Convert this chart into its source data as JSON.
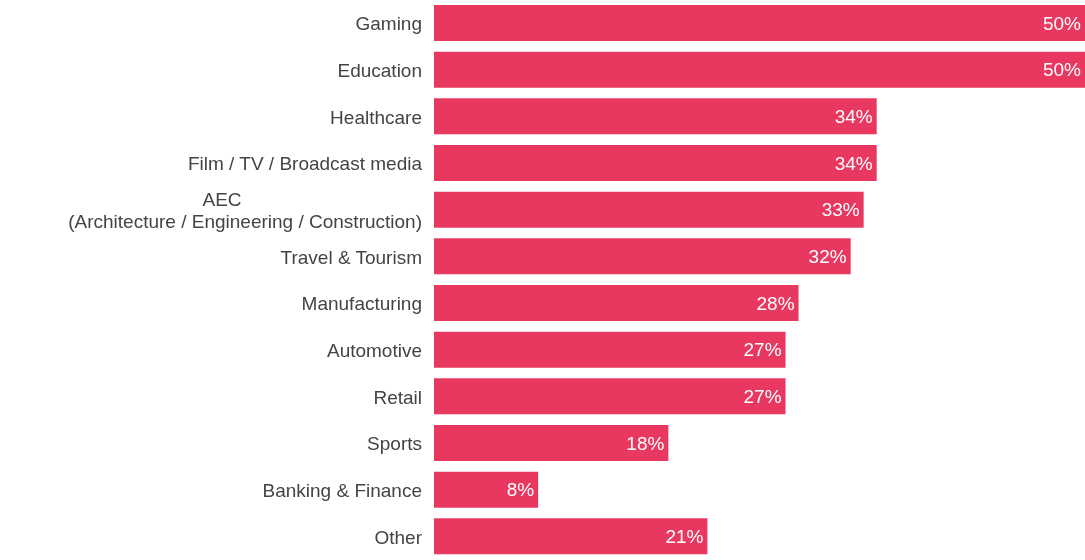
{
  "chart_data": {
    "type": "bar",
    "orientation": "horizontal",
    "categories": [
      "Gaming",
      "Education",
      "Healthcare",
      "Film / TV / Broadcast media",
      "AEC\n(Architecture / Engineering / Construction)",
      "Travel & Tourism",
      "Manufacturing",
      "Automotive",
      "Retail",
      "Sports",
      "Banking & Finance",
      "Other"
    ],
    "values": [
      50,
      50,
      34,
      34,
      33,
      32,
      28,
      27,
      27,
      18,
      8,
      21
    ],
    "value_labels": [
      "50%",
      "50%",
      "34%",
      "34%",
      "33%",
      "32%",
      "28%",
      "27%",
      "27%",
      "18%",
      "8%",
      "21%"
    ],
    "color": "#e8385f",
    "grid": false,
    "legend": false
  }
}
